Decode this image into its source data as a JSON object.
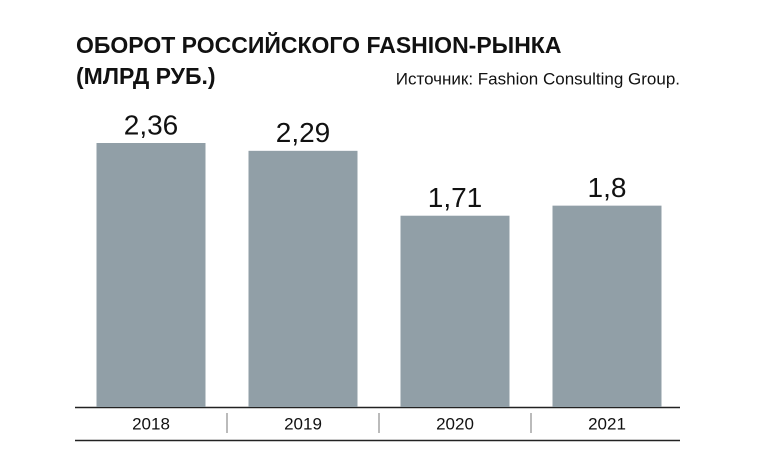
{
  "chart_data": {
    "type": "bar",
    "title": [
      "ОБОРОТ РОССИЙСКОГО FASHION-РЫНКА",
      "(МЛРД РУБ.)"
    ],
    "source": "Источник: Fashion Consulting Group.",
    "categories": [
      "2018",
      "2019",
      "2020",
      "2021"
    ],
    "values": [
      2.36,
      2.29,
      1.71,
      1.8
    ],
    "value_labels": [
      "2,36",
      "2,29",
      "1,71",
      "1,8"
    ],
    "color": "#919fa7"
  }
}
